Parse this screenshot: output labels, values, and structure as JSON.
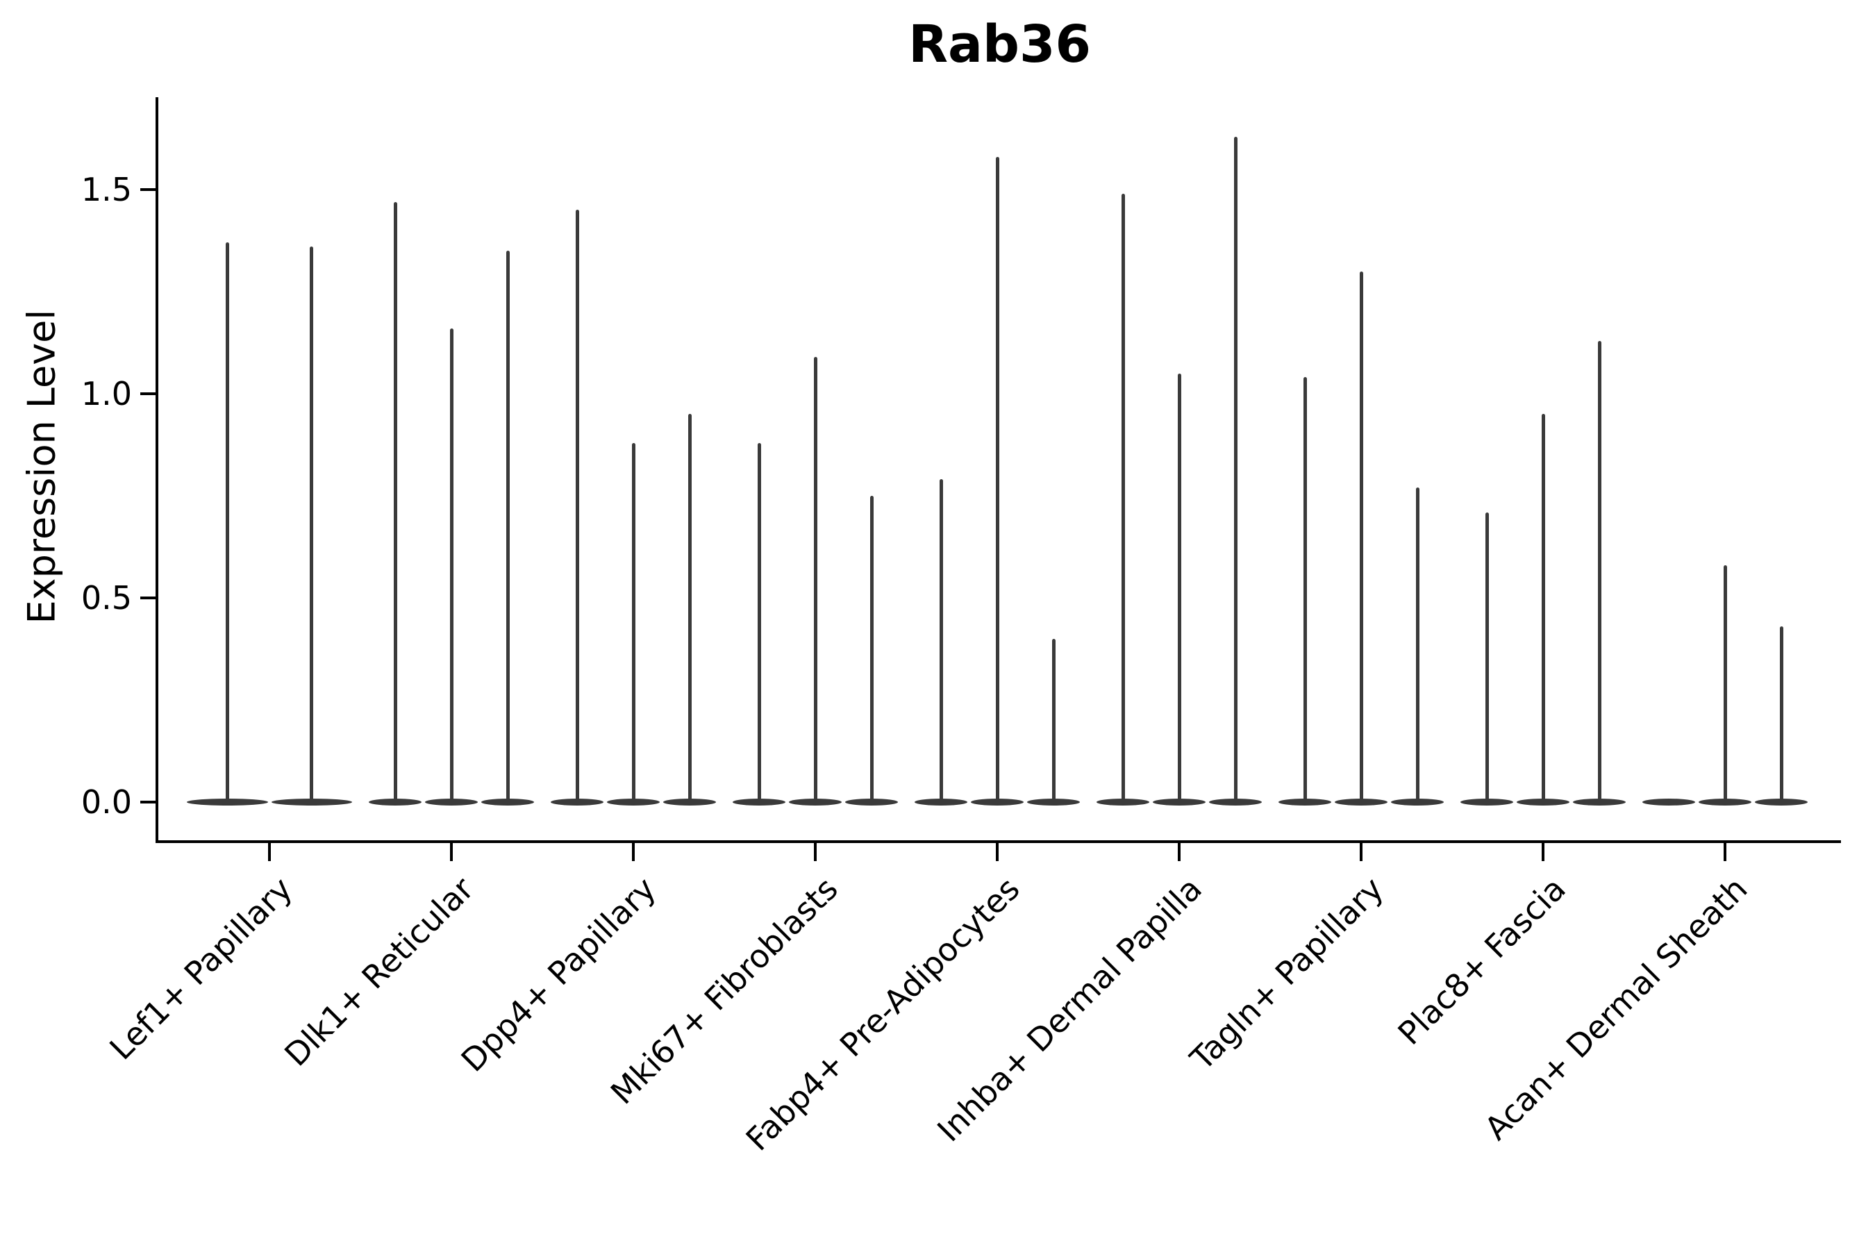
{
  "chart_data": {
    "type": "violin",
    "title": "Rab36",
    "ylabel": "Expression Level",
    "xlabel": "",
    "ylim": [
      -0.09,
      1.73
    ],
    "grid": false,
    "legend": null,
    "colors": {
      "violin": "#3a3a3a",
      "axis": "#000000",
      "text": "#000000",
      "background": "#ffffff"
    },
    "yticks": [
      {
        "value": 0.0,
        "label": "0.0"
      },
      {
        "value": 0.5,
        "label": "0.5"
      },
      {
        "value": 1.0,
        "label": "1.0"
      },
      {
        "value": 1.5,
        "label": "1.5"
      }
    ],
    "groups": [
      {
        "label": "Lef1+ Papillary",
        "violin_max_expression": [
          1.37,
          1.36
        ]
      },
      {
        "label": "Dlk1+ Reticular",
        "violin_max_expression": [
          1.47,
          1.16,
          1.35
        ]
      },
      {
        "label": "Dpp4+ Papillary",
        "violin_max_expression": [
          1.45,
          0.88,
          0.95
        ]
      },
      {
        "label": "Mki67+ Fibroblasts",
        "violin_max_expression": [
          0.88,
          1.09,
          0.75
        ]
      },
      {
        "label": "Fabp4+ Pre-Adipocytes",
        "violin_max_expression": [
          0.79,
          1.58,
          0.4
        ]
      },
      {
        "label": "Inhba+ Dermal Papilla",
        "violin_max_expression": [
          1.49,
          1.05,
          1.63
        ]
      },
      {
        "label": "Tagln+ Papillary",
        "violin_max_expression": [
          1.04,
          1.3,
          0.77
        ]
      },
      {
        "label": "Plac8+ Fascia",
        "violin_max_expression": [
          0.71,
          0.95,
          1.13
        ]
      },
      {
        "label": "Acan+ Dermal Sheath",
        "violin_max_expression": [
          0.0,
          0.58,
          0.43
        ]
      }
    ]
  }
}
